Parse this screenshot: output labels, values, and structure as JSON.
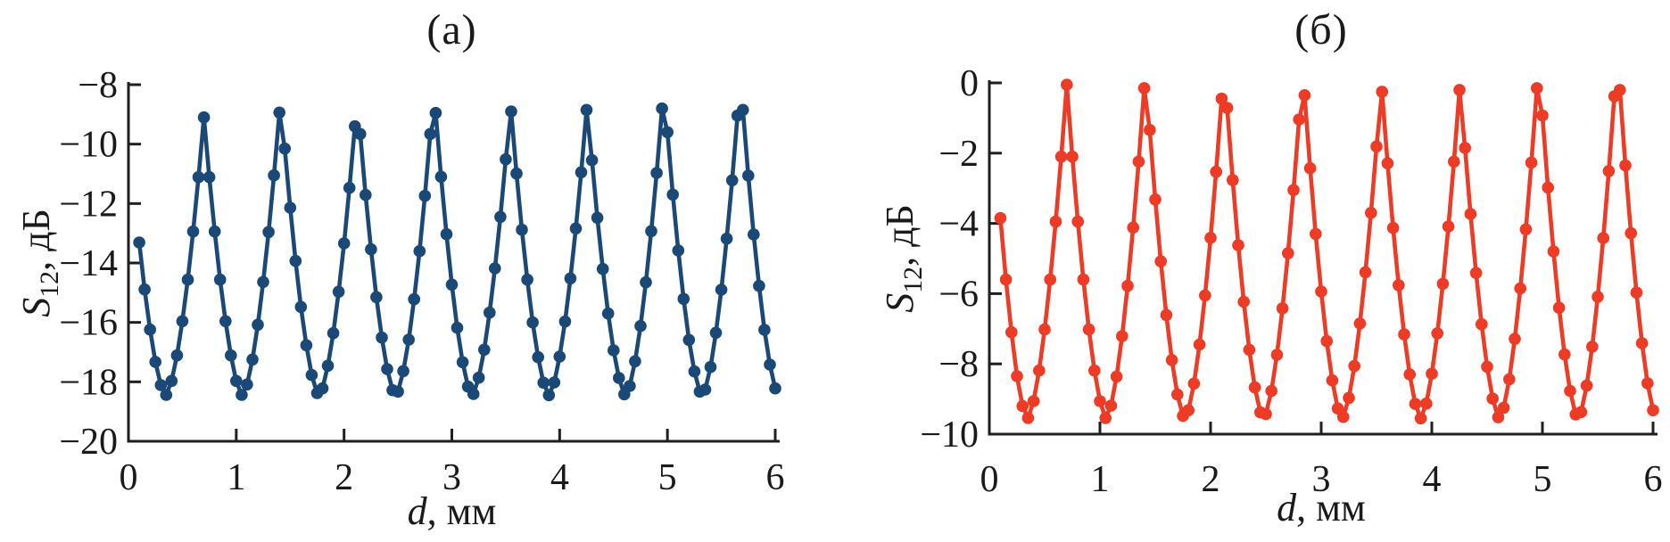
{
  "figure": {
    "background": "#ffffff",
    "panels": [
      {
        "title": "(а)"
      },
      {
        "title": "(б)"
      }
    ]
  },
  "axis_labels": {
    "x_var": "d",
    "x_rest": ", мм",
    "y_var": "S",
    "y_sub": "12",
    "y_rest": ", дБ"
  },
  "colors": {
    "series_a": "#1b4977",
    "series_b": "#ed3b26",
    "axis": "#1f1f1f",
    "text": "#1a1a1a"
  },
  "chart_data": [
    {
      "id": "a",
      "type": "line",
      "title": "(а)",
      "xlabel": "d, мм",
      "ylabel": "S12, дБ",
      "xlim": [
        0,
        6
      ],
      "ylim": [
        -20,
        -8
      ],
      "x_ticks": [
        0,
        1,
        2,
        3,
        4,
        5,
        6
      ],
      "y_ticks": [
        -20,
        -18,
        -16,
        -14,
        -12,
        -10,
        -8
      ],
      "grid": false,
      "marker": "circle",
      "color": "#1b4977",
      "points": [
        [
          0.1,
          -13.31
        ],
        [
          0.15,
          -14.89
        ],
        [
          0.2,
          -16.24
        ],
        [
          0.25,
          -17.33
        ],
        [
          0.3,
          -18.11
        ],
        [
          0.35,
          -18.44
        ],
        [
          0.4,
          -17.97
        ],
        [
          0.45,
          -17.11
        ],
        [
          0.5,
          -15.96
        ],
        [
          0.55,
          -14.56
        ],
        [
          0.6,
          -12.94
        ],
        [
          0.65,
          -11.11
        ],
        [
          0.7,
          -9.1
        ],
        [
          0.75,
          -11.11
        ],
        [
          0.8,
          -12.94
        ],
        [
          0.85,
          -14.56
        ],
        [
          0.9,
          -15.96
        ],
        [
          0.95,
          -17.11
        ],
        [
          1.0,
          -17.97
        ],
        [
          1.05,
          -18.44
        ],
        [
          1.1,
          -18.09
        ],
        [
          1.15,
          -17.25
        ],
        [
          1.2,
          -16.08
        ],
        [
          1.25,
          -14.64
        ],
        [
          1.3,
          -12.96
        ],
        [
          1.35,
          -11.05
        ],
        [
          1.4,
          -8.94
        ],
        [
          1.45,
          -10.15
        ],
        [
          1.5,
          -12.14
        ],
        [
          1.55,
          -13.93
        ],
        [
          1.6,
          -15.48
        ],
        [
          1.65,
          -16.77
        ],
        [
          1.7,
          -17.77
        ],
        [
          1.75,
          -18.38
        ],
        [
          1.8,
          -18.22
        ],
        [
          1.85,
          -17.46
        ],
        [
          1.9,
          -16.36
        ],
        [
          1.95,
          -14.97
        ],
        [
          2.0,
          -13.34
        ],
        [
          2.05,
          -11.47
        ],
        [
          2.1,
          -9.4
        ],
        [
          2.15,
          -9.66
        ],
        [
          2.2,
          -11.71
        ],
        [
          2.25,
          -13.54
        ],
        [
          2.3,
          -15.15
        ],
        [
          2.35,
          -16.51
        ],
        [
          2.4,
          -17.57
        ],
        [
          2.45,
          -18.28
        ],
        [
          2.5,
          -18.33
        ],
        [
          2.55,
          -17.64
        ],
        [
          2.6,
          -16.58
        ],
        [
          2.65,
          -15.22
        ],
        [
          2.7,
          -13.6
        ],
        [
          2.75,
          -11.74
        ],
        [
          2.8,
          -9.66
        ],
        [
          2.85,
          -8.95
        ],
        [
          2.9,
          -11.1
        ],
        [
          2.95,
          -13.03
        ],
        [
          3.0,
          -14.73
        ],
        [
          3.05,
          -16.18
        ],
        [
          3.1,
          -17.34
        ],
        [
          3.15,
          -18.16
        ],
        [
          3.2,
          -18.41
        ],
        [
          3.25,
          -17.86
        ],
        [
          3.3,
          -16.92
        ],
        [
          3.35,
          -15.67
        ],
        [
          3.4,
          -14.18
        ],
        [
          3.45,
          -12.45
        ],
        [
          3.5,
          -10.51
        ],
        [
          3.55,
          -8.9
        ],
        [
          3.6,
          -10.99
        ],
        [
          3.65,
          -12.88
        ],
        [
          3.7,
          -14.56
        ],
        [
          3.75,
          -16.0
        ],
        [
          3.8,
          -17.17
        ],
        [
          3.85,
          -18.03
        ],
        [
          3.9,
          -18.45
        ],
        [
          3.95,
          -18.02
        ],
        [
          4.0,
          -17.15
        ],
        [
          4.05,
          -15.97
        ],
        [
          4.1,
          -14.52
        ],
        [
          4.15,
          -12.84
        ],
        [
          4.2,
          -10.95
        ],
        [
          4.25,
          -8.85
        ],
        [
          4.3,
          -10.54
        ],
        [
          4.35,
          -12.48
        ],
        [
          4.4,
          -14.2
        ],
        [
          4.45,
          -15.7
        ],
        [
          4.5,
          -16.94
        ],
        [
          4.55,
          -17.87
        ],
        [
          4.6,
          -18.42
        ],
        [
          4.65,
          -18.14
        ],
        [
          4.7,
          -17.31
        ],
        [
          4.75,
          -16.12
        ],
        [
          4.8,
          -14.65
        ],
        [
          4.85,
          -12.93
        ],
        [
          4.9,
          -10.97
        ],
        [
          4.95,
          -8.8
        ],
        [
          5.0,
          -9.6
        ],
        [
          5.05,
          -11.7
        ],
        [
          5.1,
          -13.58
        ],
        [
          5.15,
          -15.21
        ],
        [
          5.2,
          -16.59
        ],
        [
          5.25,
          -17.65
        ],
        [
          5.3,
          -18.33
        ],
        [
          5.35,
          -18.26
        ],
        [
          5.4,
          -17.5
        ],
        [
          5.45,
          -16.35
        ],
        [
          5.5,
          -14.9
        ],
        [
          5.55,
          -13.18
        ],
        [
          5.6,
          -11.22
        ],
        [
          5.65,
          -9.04
        ],
        [
          5.7,
          -8.85
        ],
        [
          5.75,
          -11.06
        ],
        [
          5.8,
          -13.04
        ],
        [
          5.85,
          -14.77
        ],
        [
          5.9,
          -16.25
        ],
        [
          5.95,
          -17.42
        ],
        [
          6.0,
          -18.22
        ]
      ]
    },
    {
      "id": "b",
      "type": "line",
      "title": "(б)",
      "xlabel": "d, мм",
      "ylabel": "S12, дБ",
      "xlim": [
        0,
        6
      ],
      "ylim": [
        -10,
        0
      ],
      "x_ticks": [
        0,
        1,
        2,
        3,
        4,
        5,
        6
      ],
      "y_ticks": [
        -10,
        -8,
        -6,
        -4,
        -2,
        0
      ],
      "grid": false,
      "marker": "circle",
      "color": "#ed3b26",
      "points": [
        [
          0.1,
          -3.85
        ],
        [
          0.15,
          -5.6
        ],
        [
          0.2,
          -7.1
        ],
        [
          0.25,
          -8.35
        ],
        [
          0.3,
          -9.2
        ],
        [
          0.35,
          -9.54
        ],
        [
          0.4,
          -9.06
        ],
        [
          0.45,
          -8.19
        ],
        [
          0.5,
          -7.02
        ],
        [
          0.55,
          -5.6
        ],
        [
          0.6,
          -3.95
        ],
        [
          0.65,
          -2.1
        ],
        [
          0.7,
          -0.05
        ],
        [
          0.75,
          -2.1
        ],
        [
          0.8,
          -3.95
        ],
        [
          0.85,
          -5.6
        ],
        [
          0.9,
          -7.02
        ],
        [
          0.95,
          -8.19
        ],
        [
          1.0,
          -9.06
        ],
        [
          1.05,
          -9.54
        ],
        [
          1.1,
          -9.19
        ],
        [
          1.15,
          -8.36
        ],
        [
          1.2,
          -7.21
        ],
        [
          1.25,
          -5.78
        ],
        [
          1.3,
          -4.12
        ],
        [
          1.35,
          -2.24
        ],
        [
          1.4,
          -0.15
        ],
        [
          1.45,
          -1.34
        ],
        [
          1.5,
          -3.32
        ],
        [
          1.55,
          -5.08
        ],
        [
          1.6,
          -6.61
        ],
        [
          1.65,
          -7.89
        ],
        [
          1.7,
          -8.87
        ],
        [
          1.75,
          -9.48
        ],
        [
          1.8,
          -9.32
        ],
        [
          1.85,
          -8.56
        ],
        [
          1.9,
          -7.45
        ],
        [
          1.95,
          -6.05
        ],
        [
          2.0,
          -4.41
        ],
        [
          2.05,
          -2.53
        ],
        [
          2.1,
          -0.45
        ],
        [
          2.15,
          -0.71
        ],
        [
          2.2,
          -2.77
        ],
        [
          2.25,
          -4.62
        ],
        [
          2.3,
          -6.23
        ],
        [
          2.35,
          -7.6
        ],
        [
          2.4,
          -8.67
        ],
        [
          2.45,
          -9.38
        ],
        [
          2.5,
          -9.43
        ],
        [
          2.55,
          -8.77
        ],
        [
          2.6,
          -7.74
        ],
        [
          2.65,
          -6.42
        ],
        [
          2.7,
          -4.85
        ],
        [
          2.75,
          -3.05
        ],
        [
          2.8,
          -1.04
        ],
        [
          2.85,
          -0.35
        ],
        [
          2.9,
          -2.43
        ],
        [
          2.95,
          -4.3
        ],
        [
          3.0,
          -5.94
        ],
        [
          3.05,
          -7.35
        ],
        [
          3.1,
          -8.47
        ],
        [
          3.15,
          -9.27
        ],
        [
          3.2,
          -9.51
        ],
        [
          3.25,
          -8.97
        ],
        [
          3.3,
          -8.06
        ],
        [
          3.35,
          -6.85
        ],
        [
          3.4,
          -5.39
        ],
        [
          3.45,
          -3.7
        ],
        [
          3.5,
          -1.81
        ],
        [
          3.55,
          -0.25
        ],
        [
          3.6,
          -2.29
        ],
        [
          3.65,
          -4.13
        ],
        [
          3.7,
          -5.76
        ],
        [
          3.75,
          -7.16
        ],
        [
          3.8,
          -8.3
        ],
        [
          3.85,
          -9.14
        ],
        [
          3.9,
          -9.55
        ],
        [
          3.95,
          -9.13
        ],
        [
          4.0,
          -8.28
        ],
        [
          4.05,
          -7.13
        ],
        [
          4.1,
          -5.72
        ],
        [
          4.15,
          -4.09
        ],
        [
          4.2,
          -2.24
        ],
        [
          4.25,
          -0.2
        ],
        [
          4.3,
          -1.85
        ],
        [
          4.35,
          -3.73
        ],
        [
          4.4,
          -5.41
        ],
        [
          4.45,
          -6.87
        ],
        [
          4.5,
          -8.08
        ],
        [
          4.55,
          -8.99
        ],
        [
          4.6,
          -9.52
        ],
        [
          4.65,
          -9.25
        ],
        [
          4.7,
          -8.44
        ],
        [
          4.75,
          -7.29
        ],
        [
          4.8,
          -5.85
        ],
        [
          4.85,
          -4.17
        ],
        [
          4.9,
          -2.27
        ],
        [
          4.95,
          -0.15
        ],
        [
          5.0,
          -0.93
        ],
        [
          5.05,
          -2.98
        ],
        [
          5.1,
          -4.8
        ],
        [
          5.15,
          -6.4
        ],
        [
          5.2,
          -7.73
        ],
        [
          5.25,
          -8.77
        ],
        [
          5.3,
          -9.44
        ],
        [
          5.35,
          -9.37
        ],
        [
          5.4,
          -8.62
        ],
        [
          5.45,
          -7.51
        ],
        [
          5.5,
          -6.09
        ],
        [
          5.55,
          -4.42
        ],
        [
          5.6,
          -2.51
        ],
        [
          5.65,
          -0.38
        ],
        [
          5.7,
          -0.2
        ],
        [
          5.75,
          -2.35
        ],
        [
          5.8,
          -4.28
        ],
        [
          5.85,
          -5.97
        ],
        [
          5.9,
          -7.41
        ],
        [
          5.95,
          -8.55
        ],
        [
          6.0,
          -9.32
        ]
      ]
    }
  ]
}
